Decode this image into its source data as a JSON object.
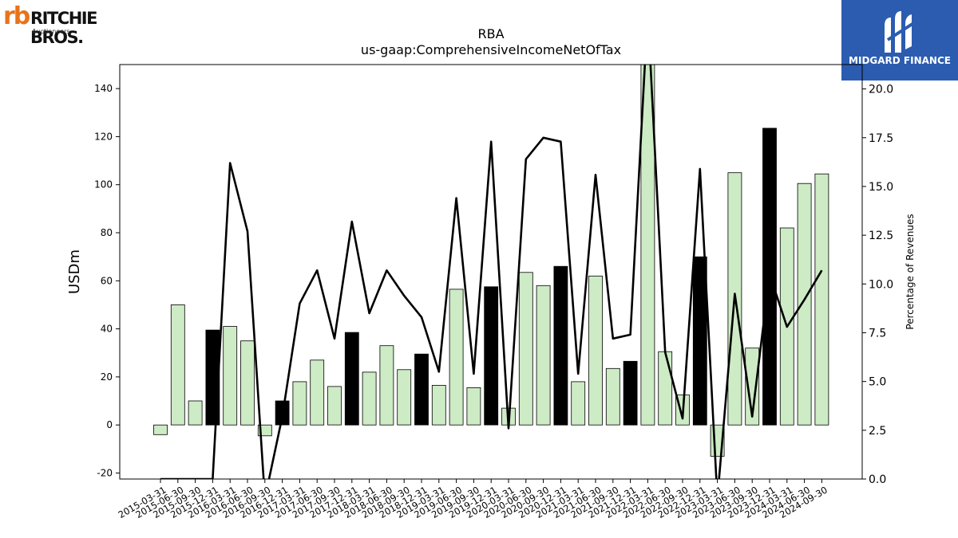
{
  "logos": {
    "left": {
      "mark": "rb",
      "name": "RITCHIE BROS.",
      "sub": "Auctioneers",
      "accent": "#e8731a"
    },
    "right": {
      "name": "MIDGARD FINANCE",
      "background": "#2b5cb0"
    }
  },
  "chart_data": {
    "type": "bar",
    "title": "RBA",
    "subtitle": "us-gaap:ComprehensiveIncomeNetOfTax",
    "ylabel": "USDm",
    "y2label": "Percentage of Revenues",
    "ylim": [
      -22.5,
      150
    ],
    "y2lim": [
      0,
      21.25
    ],
    "yticks": [
      -20,
      0,
      20,
      40,
      60,
      80,
      100,
      120,
      140
    ],
    "y2ticks": [
      "0.0",
      "2.5",
      "5.0",
      "7.5",
      "10.0",
      "12.5",
      "15.0",
      "17.5",
      "20.0"
    ],
    "grid": false,
    "legend": "none",
    "colors": {
      "quarter_bar": "#cdebc5",
      "year_end_bar": "#000000",
      "line": "#000000"
    },
    "categories": [
      "2015-03-31",
      "2015-06-30",
      "2015-09-30",
      "2015-12-31",
      "2016-03-31",
      "2016-06-30",
      "2016-09-30",
      "2016-12-31",
      "2017-03-31",
      "2017-06-30",
      "2017-09-30",
      "2017-12-31",
      "2018-03-31",
      "2018-06-30",
      "2018-09-30",
      "2018-12-31",
      "2019-03-31",
      "2019-06-30",
      "2019-09-30",
      "2019-12-31",
      "2020-03-31",
      "2020-06-30",
      "2020-09-30",
      "2020-12-31",
      "2021-03-31",
      "2021-06-30",
      "2021-09-30",
      "2021-12-31",
      "2022-03-31",
      "2022-06-30",
      "2022-09-30",
      "2022-12-31",
      "2023-03-31",
      "2023-06-30",
      "2023-09-30",
      "2023-12-31",
      "2024-03-31",
      "2024-06-30",
      "2024-09-30"
    ],
    "series": [
      {
        "kind": "bar",
        "values": [
          -4,
          50,
          10,
          39.5,
          41,
          35,
          -4.5,
          10,
          18,
          27,
          16,
          38.5,
          22,
          33,
          23,
          29.5,
          16.5,
          56.5,
          15.5,
          57.5,
          7,
          63.5,
          58,
          66,
          18,
          62,
          23.5,
          26.5,
          150,
          30.5,
          12.5,
          70,
          -13,
          105,
          32,
          123.5,
          82,
          100.5,
          104.5
        ],
        "year_end": [
          false,
          false,
          false,
          true,
          false,
          false,
          false,
          true,
          false,
          false,
          false,
          true,
          false,
          false,
          false,
          true,
          false,
          false,
          false,
          true,
          false,
          false,
          false,
          true,
          false,
          false,
          false,
          true,
          false,
          false,
          false,
          true,
          false,
          false,
          false,
          true,
          false,
          false,
          false
        ]
      },
      {
        "kind": "line",
        "axis": "right",
        "values": [
          0,
          0,
          0,
          0,
          16.2,
          12.7,
          -1,
          3.2,
          9.0,
          10.7,
          7.2,
          13.2,
          8.5,
          10.7,
          9.4,
          8.3,
          5.5,
          14.4,
          5.4,
          17.3,
          2.6,
          16.4,
          17.5,
          17.3,
          5.4,
          15.6,
          7.2,
          7.4,
          24,
          6.5,
          3.1,
          15.9,
          -1,
          9.5,
          3.2,
          10.5,
          7.8,
          9.2,
          10.7
        ]
      }
    ]
  }
}
